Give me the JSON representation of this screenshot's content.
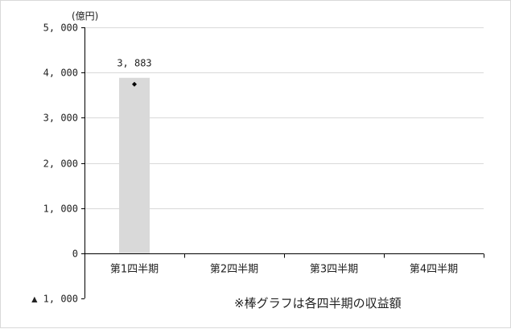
{
  "chart_data": {
    "type": "bar",
    "title": "",
    "unit_label": "(億円)",
    "categories": [
      "第1四半期",
      "第2四半期",
      "第3四半期",
      "第4四半期"
    ],
    "series": [
      {
        "values": [
          3883,
          null,
          null,
          null
        ]
      }
    ],
    "data_labels": [
      "3, 883",
      "",
      "",
      ""
    ],
    "ylim": [
      -1000,
      5000
    ],
    "y_ticks": [
      -1000,
      0,
      1000,
      2000,
      3000,
      4000,
      5000
    ],
    "y_tick_labels": [
      "▲ 1, 000",
      "0",
      "1, 000",
      "2, 000",
      "3, 000",
      "4, 000",
      "5, 000"
    ],
    "grid": true,
    "bar_color": "#d9d9d9",
    "marker": "diamond",
    "note": "※棒グラフは各四半期の収益額"
  }
}
